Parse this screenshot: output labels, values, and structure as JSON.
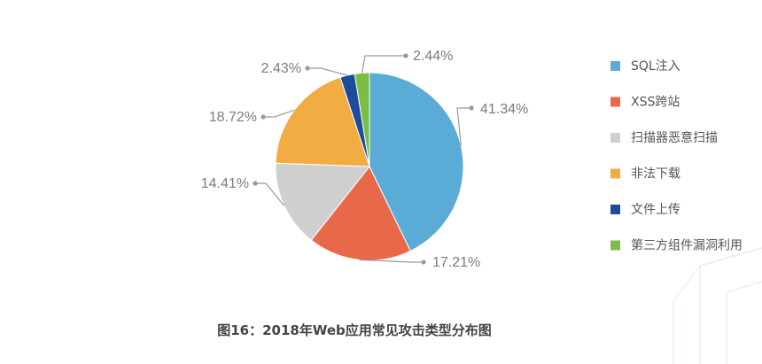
{
  "chart_data": {
    "type": "pie",
    "title": "",
    "caption": "图16：2018年Web应用常见攻击类型分布图",
    "legend_position": "right",
    "slices": [
      {
        "name": "SQL注入",
        "value": 41.34,
        "label": "41.34%",
        "color": "#5aabd6"
      },
      {
        "name": "XSS跨站",
        "value": 17.21,
        "label": "17.21%",
        "color": "#e8694a"
      },
      {
        "name": "扫描器恶意扫描",
        "value": 14.41,
        "label": "14.41%",
        "color": "#cfcfcf"
      },
      {
        "name": "非法下载",
        "value": 18.72,
        "label": "18.72%",
        "color": "#f2ac44"
      },
      {
        "name": "文件上传",
        "value": 2.43,
        "label": "2.43%",
        "color": "#1f4b9c"
      },
      {
        "name": "第三方组件漏洞利用",
        "value": 2.44,
        "label": "2.44%",
        "color": "#7cbe45"
      }
    ]
  }
}
